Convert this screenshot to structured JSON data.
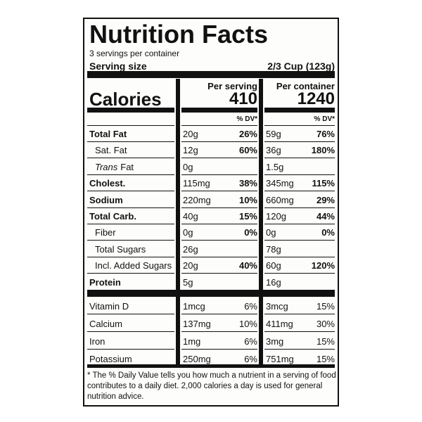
{
  "title": "Nutrition Facts",
  "servings": "3 servings per container",
  "serving_size": {
    "label": "Serving size",
    "value": "2/3 Cup (123g)"
  },
  "calories_label": "Calories",
  "columns": [
    {
      "heading": "Per serving",
      "calories": "410",
      "dv_heading": "% DV*"
    },
    {
      "heading": "Per container",
      "calories": "1240",
      "dv_heading": "% DV*"
    }
  ],
  "rows": [
    {
      "label": "Total Fat",
      "bold": true,
      "indent": false,
      "cells": [
        [
          "20g",
          "26%"
        ],
        [
          "59g",
          "76%"
        ]
      ]
    },
    {
      "label": "Sat. Fat",
      "bold": false,
      "indent": true,
      "cells": [
        [
          "12g",
          "60%"
        ],
        [
          "36g",
          "180%"
        ]
      ]
    },
    {
      "label_italic": "Trans",
      "label": "Fat",
      "bold": false,
      "indent": true,
      "cells": [
        [
          "0g"
        ],
        [
          "1.5g"
        ]
      ]
    },
    {
      "label": "Cholest.",
      "bold": true,
      "indent": false,
      "cells": [
        [
          "115mg",
          "38%"
        ],
        [
          "345mg",
          "115%"
        ]
      ]
    },
    {
      "label": "Sodium",
      "bold": true,
      "indent": false,
      "cells": [
        [
          "220mg",
          "10%"
        ],
        [
          "660mg",
          "29%"
        ]
      ]
    },
    {
      "label": "Total Carb.",
      "bold": true,
      "indent": false,
      "cells": [
        [
          "40g",
          "15%"
        ],
        [
          "120g",
          "44%"
        ]
      ]
    },
    {
      "label": "Fiber",
      "bold": false,
      "indent": true,
      "cells": [
        [
          "0g",
          "0%"
        ],
        [
          "0g",
          "0%"
        ]
      ]
    },
    {
      "label": "Total Sugars",
      "bold": false,
      "indent": true,
      "cells": [
        [
          "26g"
        ],
        [
          "78g"
        ]
      ]
    },
    {
      "label": "Incl. Added Sugars",
      "bold": false,
      "indent": true,
      "cells": [
        [
          "20g",
          "40%"
        ],
        [
          "60g",
          "120%"
        ]
      ]
    },
    {
      "label": "Protein",
      "bold": true,
      "indent": false,
      "cells": [
        [
          "5g"
        ],
        [
          "16g"
        ]
      ]
    }
  ],
  "minerals": [
    {
      "label": "Vitamin D",
      "cells": [
        [
          "1mcg",
          "6%"
        ],
        [
          "3mcg",
          "15%"
        ]
      ]
    },
    {
      "label": "Calcium",
      "cells": [
        [
          "137mg",
          "10%"
        ],
        [
          "411mg",
          "30%"
        ]
      ]
    },
    {
      "label": "Iron",
      "cells": [
        [
          "1mg",
          "6%"
        ],
        [
          "3mg",
          "15%"
        ]
      ]
    },
    {
      "label": "Potassium",
      "cells": [
        [
          "250mg",
          "6%"
        ],
        [
          "751mg",
          "15%"
        ]
      ]
    }
  ],
  "footnote": [
    "* The % Daily Value tells you how much a nutrient in a serving of food",
    "contributes to a daily diet. 2,000 calories a day is used for general",
    "nutrition advice."
  ]
}
